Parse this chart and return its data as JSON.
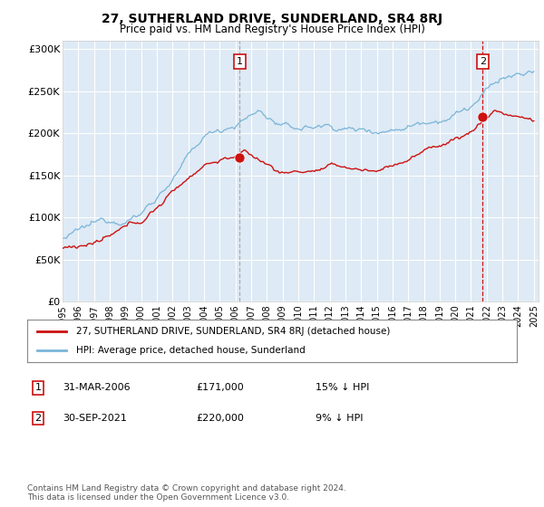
{
  "title": "27, SUTHERLAND DRIVE, SUNDERLAND, SR4 8RJ",
  "subtitle": "Price paid vs. HM Land Registry's House Price Index (HPI)",
  "ylim": [
    0,
    310000
  ],
  "yticks": [
    0,
    50000,
    100000,
    150000,
    200000,
    250000,
    300000
  ],
  "ytick_labels": [
    "£0",
    "£50K",
    "£100K",
    "£150K",
    "£200K",
    "£250K",
    "£300K"
  ],
  "hpi_color": "#7ab5d8",
  "price_color": "#cc1111",
  "vline1_color": "#aaaaaa",
  "vline2_color": "#cc1111",
  "point1_year": 2006.25,
  "point1_price": 171000,
  "point1_date": "31-MAR-2006",
  "point1_pct": "15% ↓ HPI",
  "point2_year": 2021.75,
  "point2_price": 220000,
  "point2_date": "30-SEP-2021",
  "point2_pct": "9% ↓ HPI",
  "legend_label1": "27, SUTHERLAND DRIVE, SUNDERLAND, SR4 8RJ (detached house)",
  "legend_label2": "HPI: Average price, detached house, Sunderland",
  "footer": "Contains HM Land Registry data © Crown copyright and database right 2024.\nThis data is licensed under the Open Government Licence v3.0.",
  "background_color": "#ffffff",
  "plot_bg_color": "#deeaf5"
}
